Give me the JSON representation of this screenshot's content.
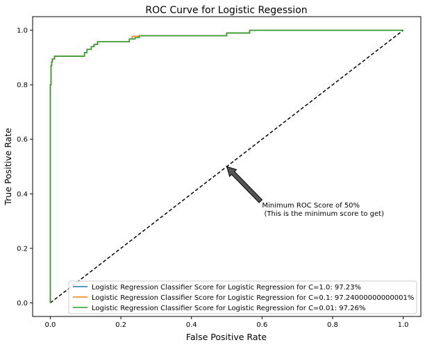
{
  "chart_data": {
    "type": "line",
    "title": "ROC Curve for Logistic Regession",
    "xlabel": "False Positive Rate",
    "ylabel": "True Positive Rate",
    "xlim": [
      -0.05,
      1.05
    ],
    "ylim": [
      -0.05,
      1.05
    ],
    "xticks": [
      "0.0",
      "0.2",
      "0.4",
      "0.6",
      "0.8",
      "1.0"
    ],
    "yticks": [
      "0.0",
      "0.2",
      "0.4",
      "0.6",
      "0.8",
      "1.0"
    ],
    "grid": false,
    "legend_position": "lower-right",
    "series": [
      {
        "name": "Logistic Regression Classifier Score for Logistic Regression for C=1.0: 97.23%",
        "color": "#1f77b4",
        "x": [
          0,
          0,
          0.002,
          0.002,
          0.004,
          0.004,
          0.006,
          0.006,
          0.012,
          0.012,
          0.097,
          0.097,
          0.104,
          0.104,
          0.116,
          0.116,
          0.124,
          0.124,
          0.134,
          0.134,
          0.224,
          0.224,
          0.24,
          0.24,
          0.252,
          0.252,
          0.5,
          0.5,
          0.565,
          0.565,
          1.0
        ],
        "y": [
          0,
          0.8,
          0.8,
          0.87,
          0.87,
          0.885,
          0.885,
          0.895,
          0.895,
          0.905,
          0.905,
          0.918,
          0.918,
          0.93,
          0.93,
          0.94,
          0.94,
          0.948,
          0.948,
          0.958,
          0.958,
          0.968,
          0.968,
          0.973,
          0.973,
          0.98,
          0.98,
          0.99,
          0.99,
          1.0,
          1.0
        ]
      },
      {
        "name": "Logistic Regression Classifier Score for Logistic Regression for C=0.1: 97.24000000000001%",
        "color": "#ff7f0e",
        "x": [
          0,
          0,
          0.002,
          0.002,
          0.004,
          0.004,
          0.006,
          0.006,
          0.012,
          0.012,
          0.097,
          0.097,
          0.104,
          0.104,
          0.116,
          0.116,
          0.124,
          0.124,
          0.134,
          0.134,
          0.224,
          0.224,
          0.232,
          0.232,
          0.252,
          0.252,
          0.5,
          0.5,
          0.565,
          0.565,
          1.0
        ],
        "y": [
          0,
          0.8,
          0.8,
          0.87,
          0.87,
          0.885,
          0.885,
          0.895,
          0.895,
          0.905,
          0.905,
          0.918,
          0.918,
          0.93,
          0.93,
          0.94,
          0.94,
          0.948,
          0.948,
          0.958,
          0.958,
          0.968,
          0.968,
          0.978,
          0.978,
          0.98,
          0.98,
          0.99,
          0.99,
          1.0,
          1.0
        ]
      },
      {
        "name": "Logistic Regression Classifier Score for Logistic Regression for C=0.01: 97.26%",
        "color": "#2ca02c",
        "x": [
          0,
          0,
          0.002,
          0.002,
          0.004,
          0.004,
          0.006,
          0.006,
          0.012,
          0.012,
          0.097,
          0.097,
          0.104,
          0.104,
          0.116,
          0.116,
          0.124,
          0.124,
          0.134,
          0.134,
          0.224,
          0.224,
          0.24,
          0.24,
          0.252,
          0.252,
          0.5,
          0.5,
          0.565,
          0.565,
          1.0
        ],
        "y": [
          0,
          0.8,
          0.8,
          0.87,
          0.87,
          0.885,
          0.885,
          0.895,
          0.895,
          0.905,
          0.905,
          0.918,
          0.918,
          0.93,
          0.93,
          0.94,
          0.94,
          0.948,
          0.948,
          0.958,
          0.958,
          0.968,
          0.968,
          0.973,
          0.973,
          0.98,
          0.98,
          0.99,
          0.99,
          1.0,
          1.0
        ]
      }
    ],
    "reference_line": {
      "x": [
        0,
        1
      ],
      "y": [
        0,
        1
      ],
      "color": "#000000",
      "style": "dashed"
    },
    "annotation": {
      "line1": "Minimum ROC Score of 50%",
      "line2": " (This is the minimum score to get)",
      "point": [
        0.5,
        0.5
      ],
      "text_anchor": [
        0.6,
        0.35
      ],
      "arrow_color": "#555555"
    }
  }
}
